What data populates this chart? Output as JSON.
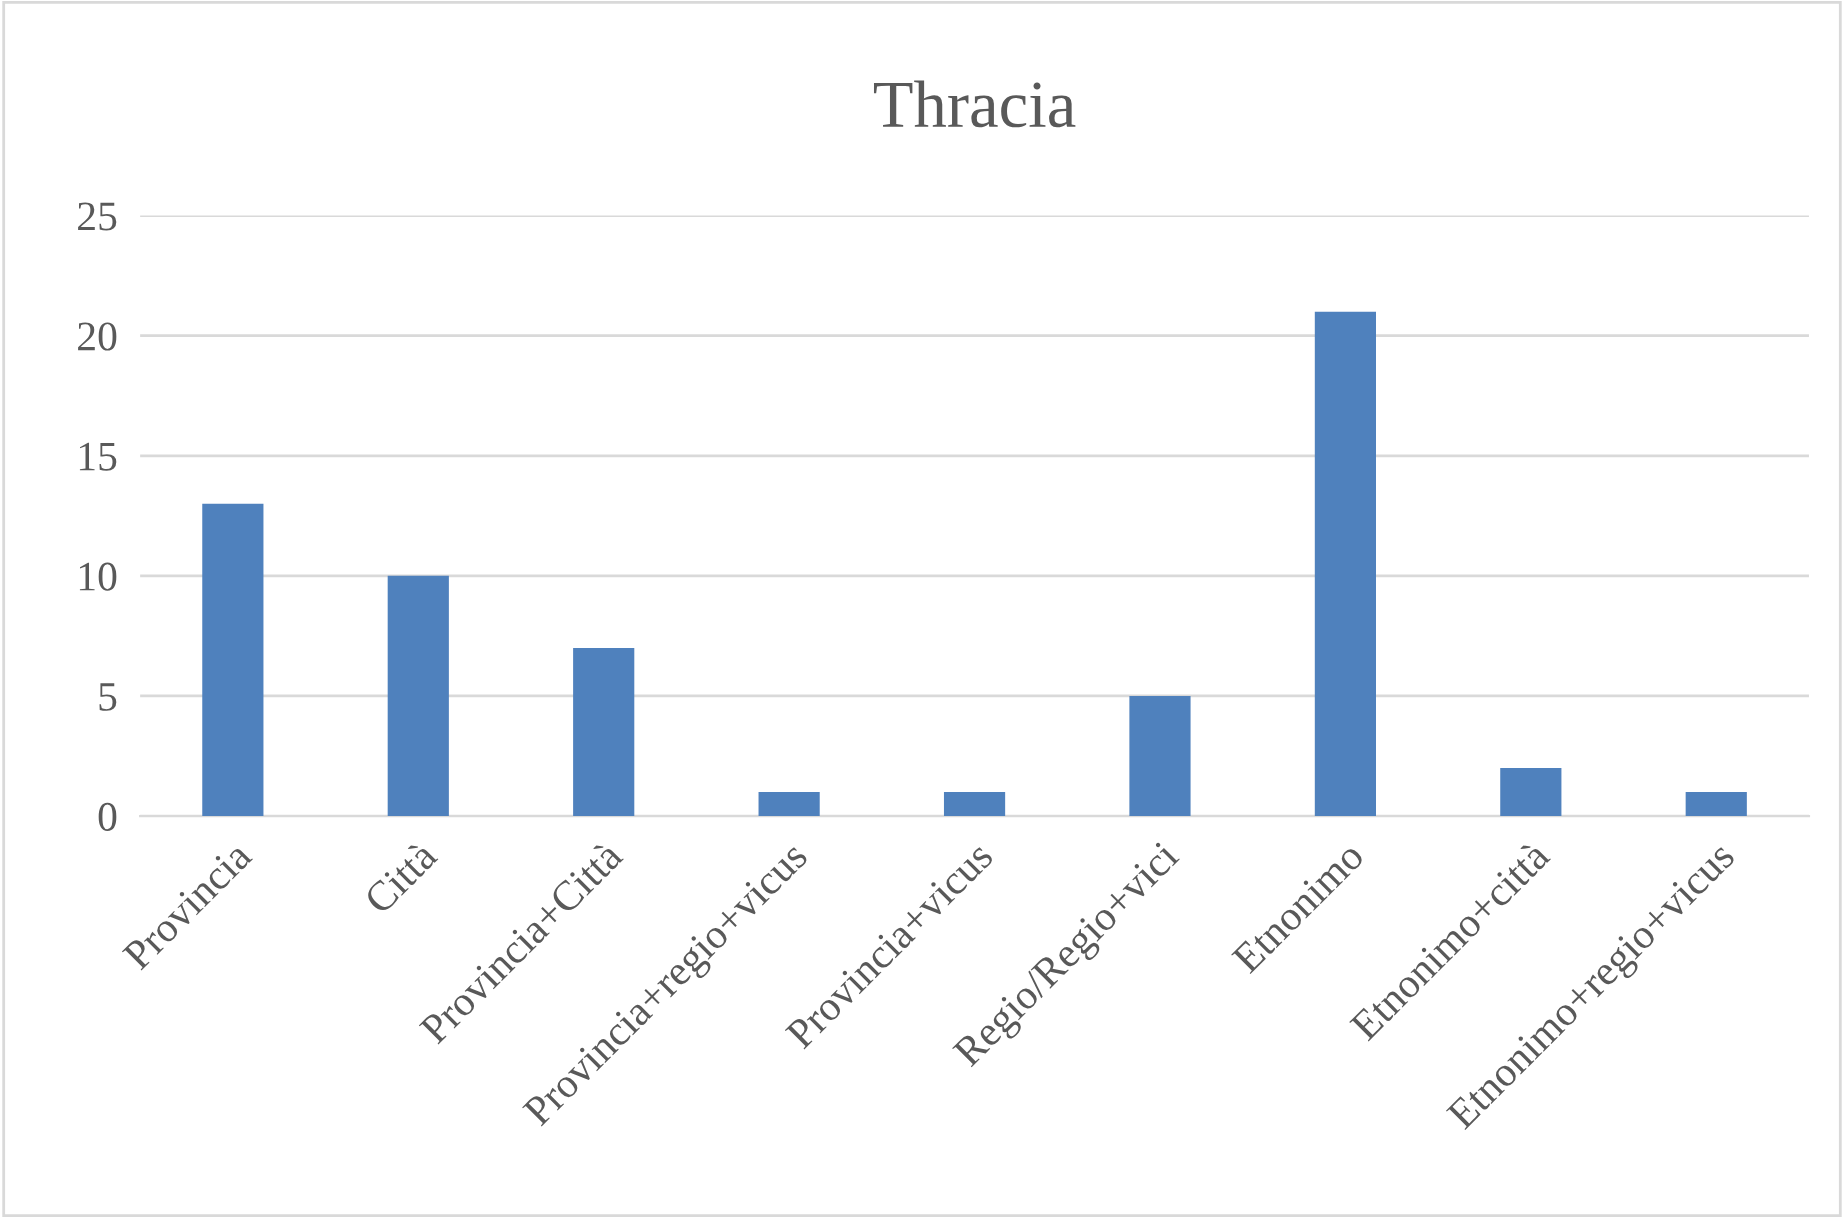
{
  "chart_data": {
    "type": "bar",
    "title": "Thracia",
    "categories": [
      "Provincia",
      "Città",
      "Provincia+Città",
      "Provincia+regio+vicus",
      "Provincia+vicus",
      "Regio/Regio+vici",
      "Etnonimo",
      "Etnonimo+città",
      "Etnonimo+regio+vicus"
    ],
    "values": [
      13,
      10,
      7,
      1,
      1,
      5,
      21,
      2,
      1
    ],
    "color": "#4f81bd",
    "ylim": [
      0,
      25
    ],
    "yticks": [
      0,
      5,
      10,
      15,
      20,
      25
    ],
    "grid": "y",
    "legend": false
  }
}
